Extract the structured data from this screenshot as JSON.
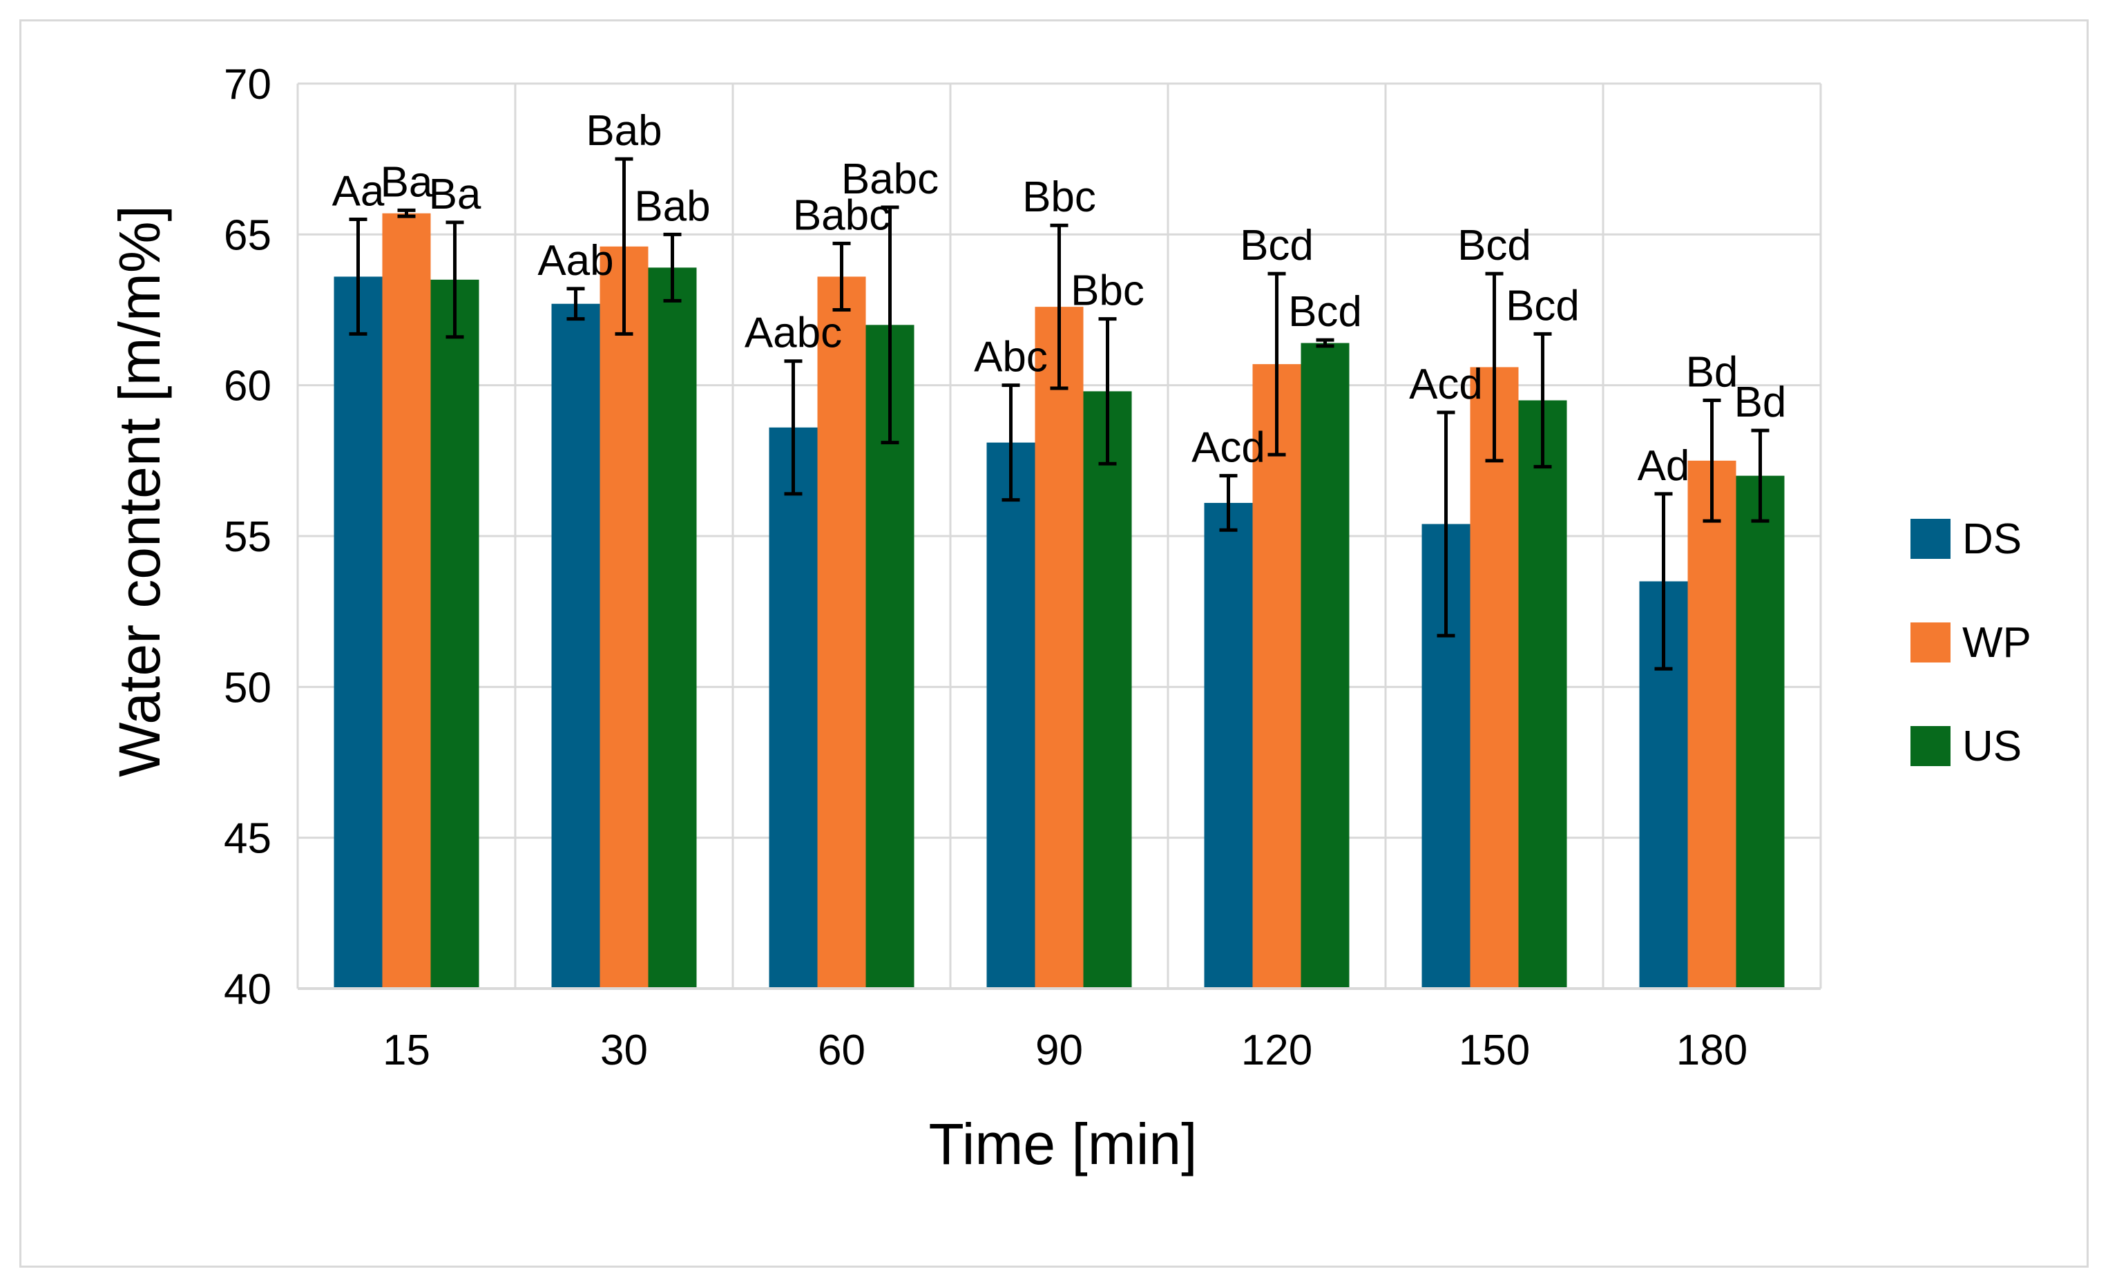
{
  "chart_data": {
    "type": "bar",
    "title": "",
    "xlabel": "Time [min]",
    "ylabel": "Water content [m/m%]",
    "ylim": [
      40,
      70
    ],
    "yticks": [
      40,
      45,
      50,
      55,
      60,
      65,
      70
    ],
    "grid": true,
    "legend_position": "right",
    "categories": [
      "15",
      "30",
      "60",
      "90",
      "120",
      "150",
      "180"
    ],
    "series": [
      {
        "name": "DS",
        "color": "#005F87",
        "values": [
          63.6,
          62.7,
          58.6,
          58.1,
          56.1,
          55.4,
          53.5
        ],
        "errors": [
          1.9,
          0.5,
          2.2,
          1.9,
          0.9,
          3.7,
          2.9
        ],
        "labels": [
          "Aa",
          "Aab",
          "Aabc",
          "Abc",
          "Acd",
          "Acd",
          "Ad"
        ]
      },
      {
        "name": "WP",
        "color": "#F47A30",
        "values": [
          65.7,
          64.6,
          63.6,
          62.6,
          60.7,
          60.6,
          57.5
        ],
        "errors": [
          0.1,
          2.9,
          1.1,
          2.7,
          3.0,
          3.1,
          2.0
        ],
        "labels": [
          "Ba",
          "Bab",
          "Babc",
          "Bbc",
          "Bcd",
          "Bcd",
          "Bd"
        ]
      },
      {
        "name": "US",
        "color": "#076A1C",
        "values": [
          63.5,
          63.9,
          62.0,
          59.8,
          61.4,
          59.5,
          57.0
        ],
        "errors": [
          1.9,
          1.1,
          3.9,
          2.4,
          0.1,
          2.2,
          1.5
        ],
        "labels": [
          "Ba",
          "Bab",
          "Babc",
          "Bbc",
          "Bcd",
          "Bcd",
          "Bd"
        ]
      }
    ]
  }
}
